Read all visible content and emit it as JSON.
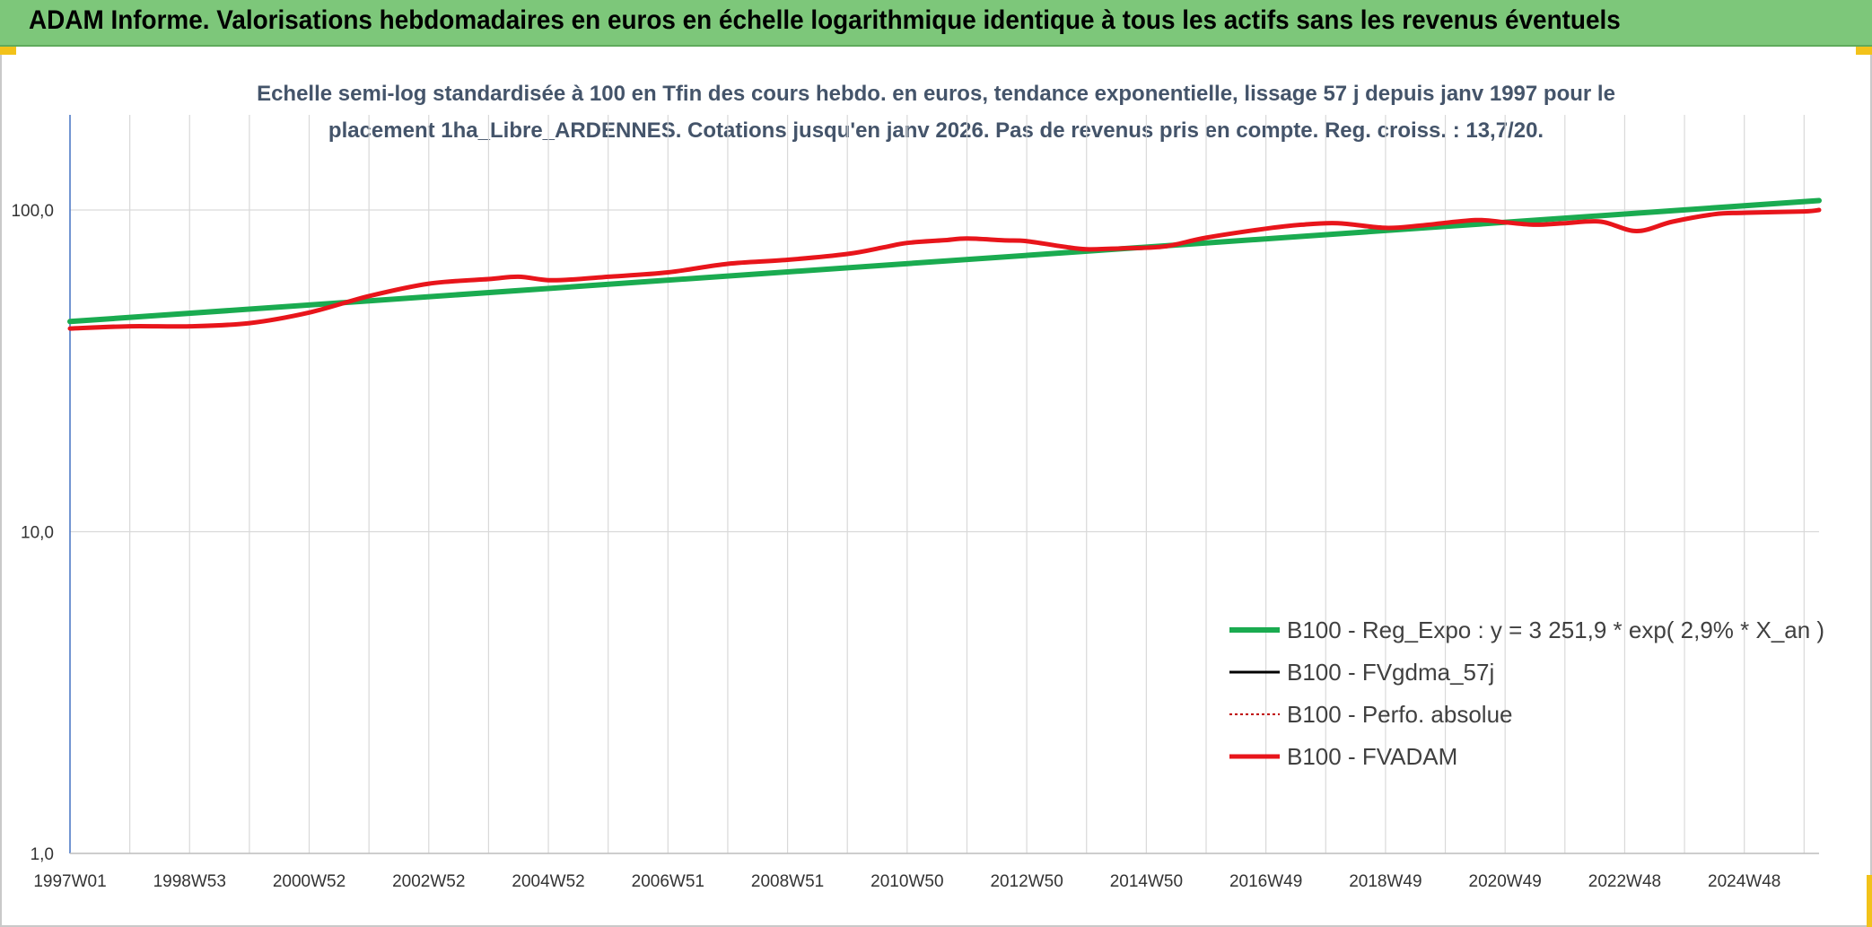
{
  "header": {
    "title": "ADAM Informe. Valorisations hebdomadaires en euros en échelle logarithmique identique à tous les actifs sans les revenus éventuels"
  },
  "colors": {
    "header_bg": "#7dc77a",
    "reg_expo": "#1aab50",
    "fvgdma": "#000000",
    "perfo": "#c00000",
    "fvadam": "#e8151b",
    "grid": "#d9d9d9",
    "axis": "#4472c4"
  },
  "chart_data": {
    "type": "line",
    "title_lines": [
      "Echelle semi-log standardisée à 100 en Tfin des cours hebdo. en euros, tendance exponentielle, lissage 57 j depuis janv 1997 pour le",
      "placement 1ha_Libre_ARDENNES. Cotations jusqu'en janv 2026. Pas de revenus pris en compte. Reg. croiss. : 13,7/20."
    ],
    "yscale": "log",
    "ylim": [
      1,
      180
    ],
    "yticks": [
      {
        "value": 1,
        "label": "1,0"
      },
      {
        "value": 10,
        "label": "10,0"
      },
      {
        "value": 100,
        "label": "100,0"
      }
    ],
    "xlim": [
      1997.0,
      2026.25
    ],
    "xticks": [
      {
        "value": 1997.0,
        "label": "1997W01"
      },
      {
        "value": 1999.0,
        "label": "1998W53"
      },
      {
        "value": 2001.0,
        "label": "2000W52"
      },
      {
        "value": 2003.0,
        "label": "2002W52"
      },
      {
        "value": 2005.0,
        "label": "2004W52"
      },
      {
        "value": 2007.0,
        "label": "2006W51"
      },
      {
        "value": 2009.0,
        "label": "2008W51"
      },
      {
        "value": 2011.0,
        "label": "2010W50"
      },
      {
        "value": 2013.0,
        "label": "2012W50"
      },
      {
        "value": 2015.0,
        "label": "2014W50"
      },
      {
        "value": 2017.0,
        "label": "2016W49"
      },
      {
        "value": 2019.0,
        "label": "2018W49"
      },
      {
        "value": 2021.0,
        "label": "2020W49"
      },
      {
        "value": 2023.0,
        "label": "2022W48"
      },
      {
        "value": 2025.0,
        "label": "2024W48"
      }
    ],
    "series": [
      {
        "name": "B100 - Reg_Expo : y = 3 251,9 * exp( 2,9% *  X_an )",
        "style": "solid-green",
        "x": [
          1997.0,
          2026.25
        ],
        "values": [
          45.0,
          107.0
        ]
      },
      {
        "name": "B100 - FVgdma_57j",
        "style": "solid-black",
        "x": [],
        "values": []
      },
      {
        "name": "B100 - Perfo. absolue",
        "style": "dotted-red",
        "x": [],
        "values": []
      },
      {
        "name": "B100 - FVADAM",
        "style": "solid-red",
        "x": [
          1997.0,
          1998.0,
          1999.0,
          2000.0,
          2001.0,
          2002.0,
          2003.0,
          2004.0,
          2004.5,
          2005.0,
          2005.5,
          2006.0,
          2007.0,
          2008.0,
          2009.0,
          2010.0,
          2010.6,
          2011.0,
          2011.6,
          2012.0,
          2012.6,
          2013.0,
          2013.6,
          2014.0,
          2014.6,
          2015.3,
          2016.0,
          2017.0,
          2017.6,
          2018.2,
          2019.0,
          2019.6,
          2020.5,
          2021.0,
          2021.5,
          2022.0,
          2022.6,
          2023.2,
          2023.8,
          2024.5,
          2025.0,
          2026.0,
          2026.25
        ],
        "values": [
          42.8,
          43.5,
          43.5,
          44.5,
          48.0,
          54.0,
          59.0,
          61.0,
          62.0,
          60.5,
          61.0,
          62.0,
          64.0,
          68.0,
          70.0,
          73.0,
          76.5,
          79.0,
          80.5,
          81.5,
          80.5,
          80.0,
          77.0,
          75.5,
          76.0,
          77.0,
          82.0,
          87.5,
          90.0,
          91.0,
          88.0,
          89.5,
          93.0,
          91.5,
          90.0,
          91.0,
          92.0,
          86.0,
          92.0,
          97.0,
          98.0,
          99.0,
          100.0
        ]
      }
    ],
    "legend_position": "bottom-right",
    "grid": true
  }
}
